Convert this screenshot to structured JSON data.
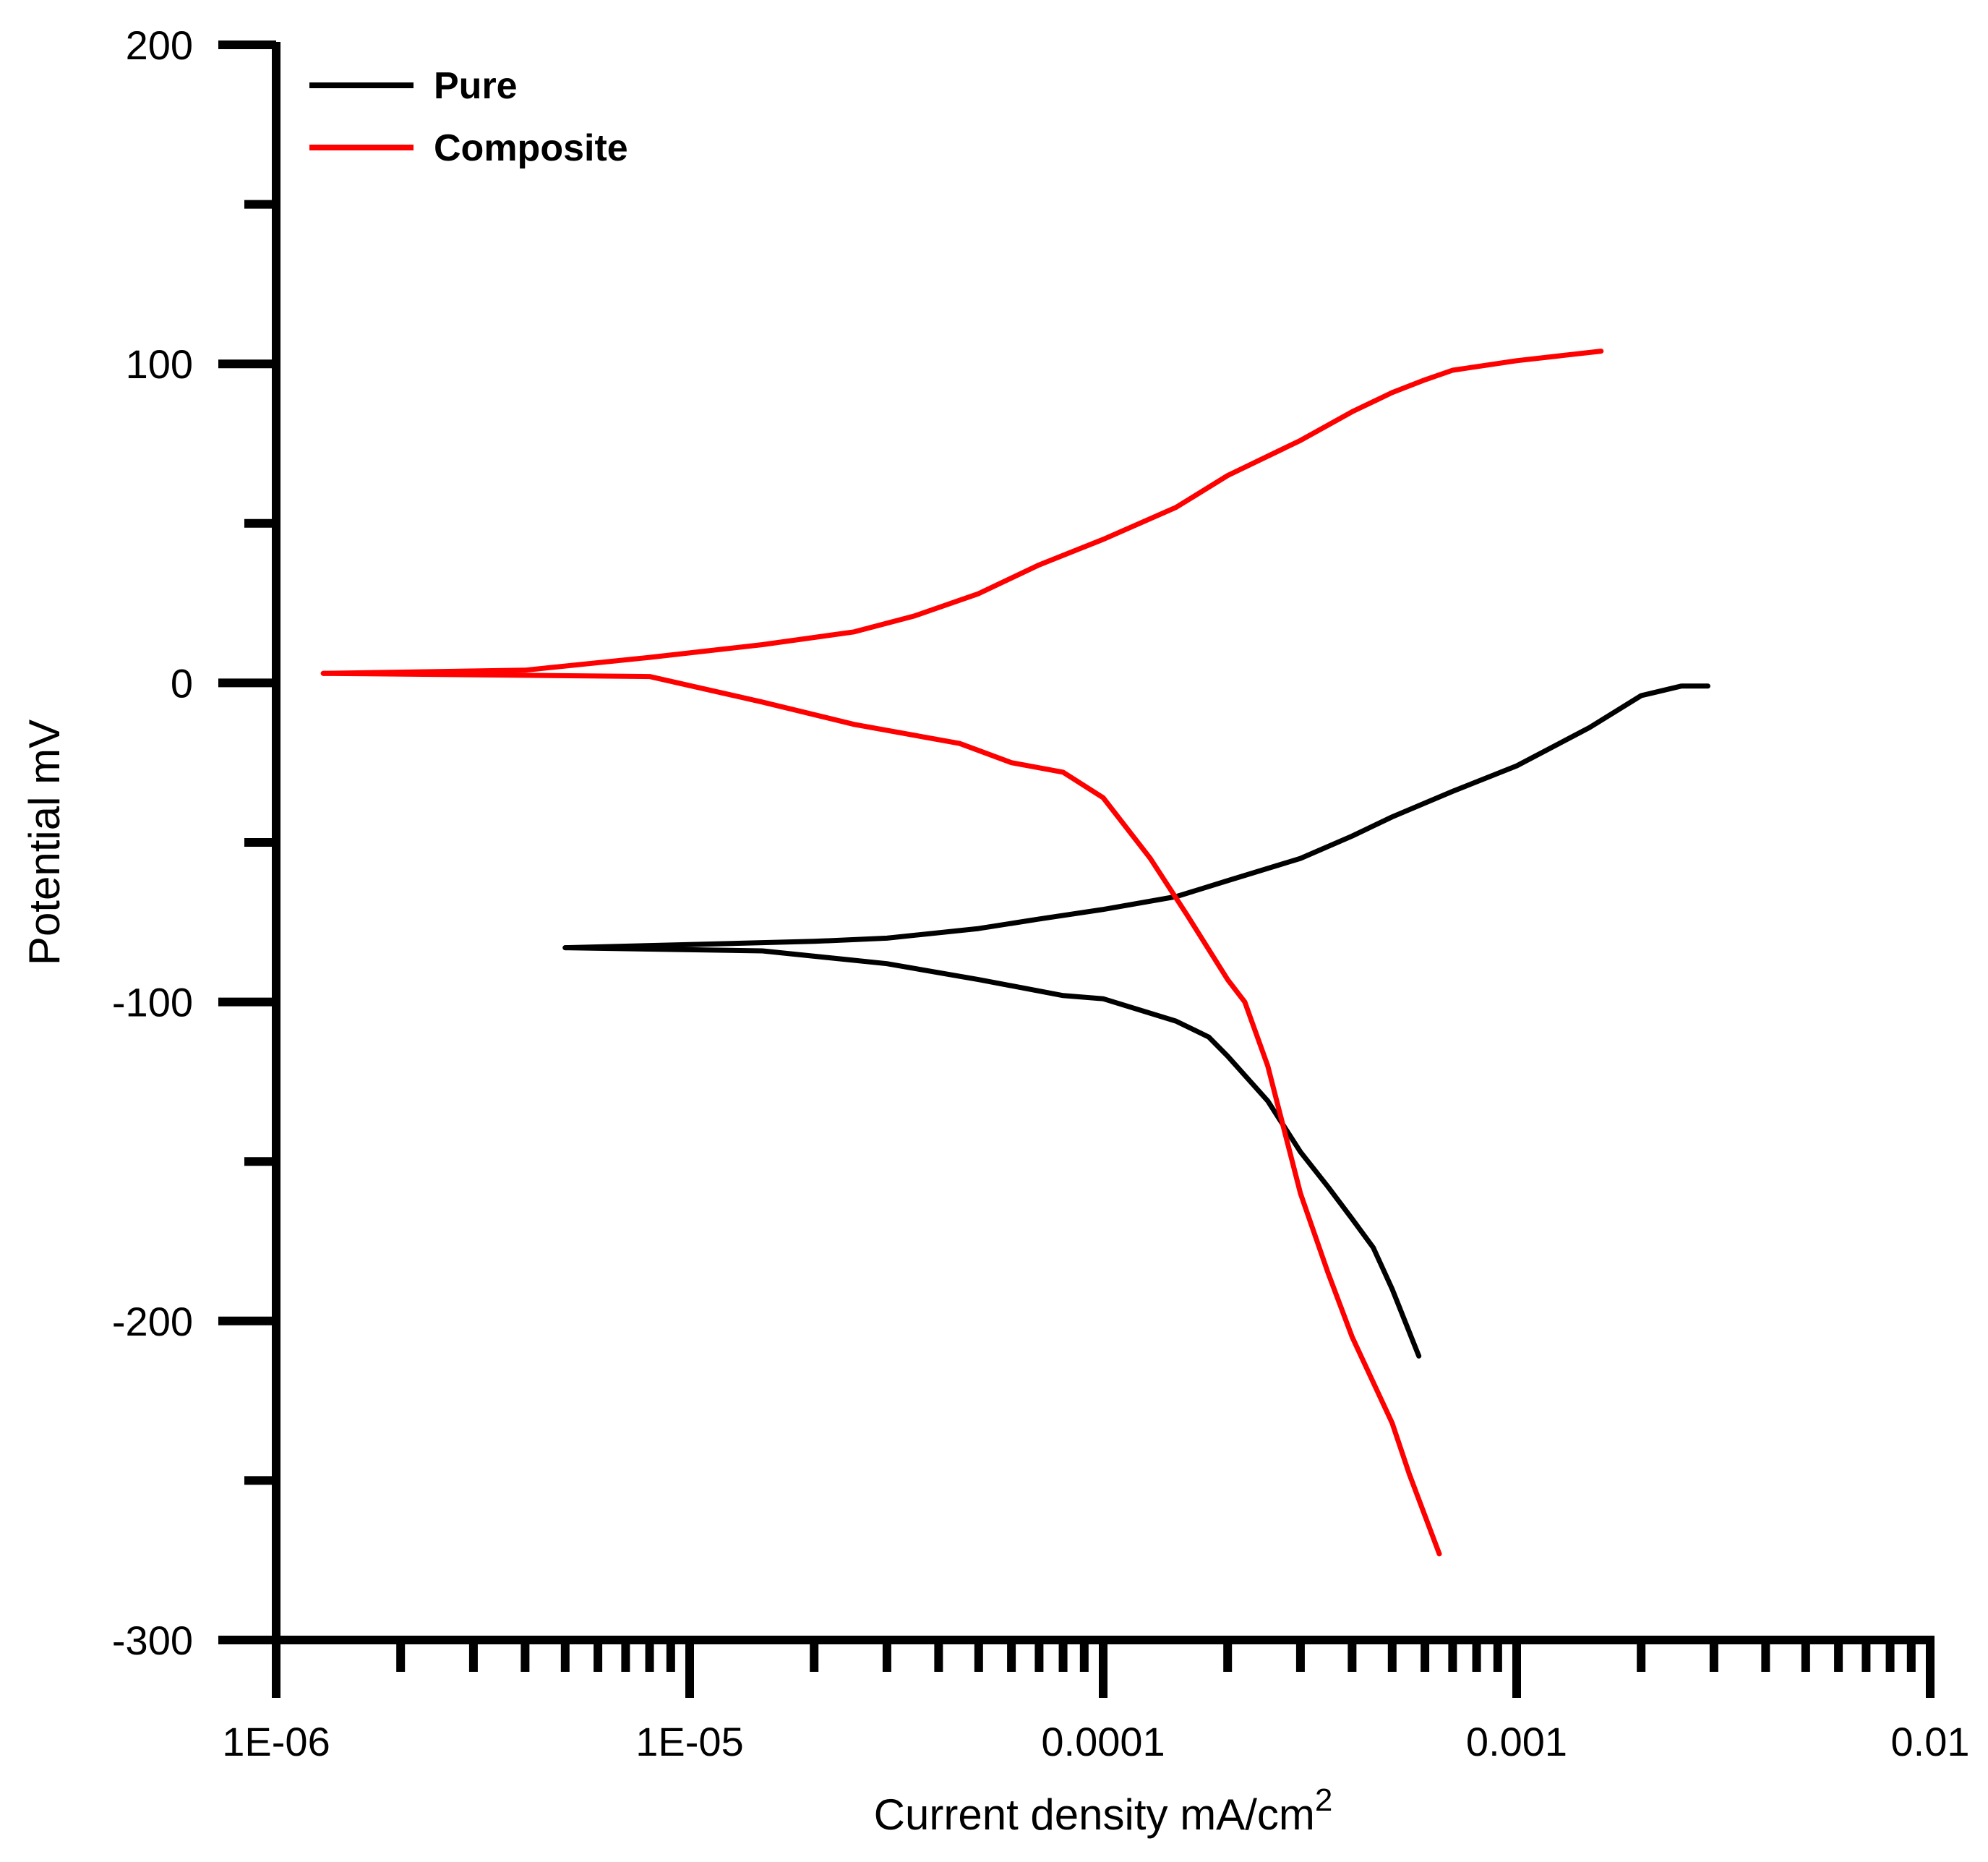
{
  "chart_data": {
    "type": "line",
    "xlabel": "Current density mA/cm",
    "xlabel_superscript": "2",
    "ylabel": "Potential mV",
    "x_scale": "log",
    "xlim": [
      1e-06,
      0.01
    ],
    "ylim": [
      -300,
      200
    ],
    "x_ticks": [
      1e-06,
      1e-05,
      0.0001,
      0.001,
      0.01
    ],
    "x_tick_labels": [
      "1E-06",
      "1E-05",
      "0.0001",
      "0.001",
      "0.01"
    ],
    "y_ticks": [
      -300,
      -200,
      -100,
      0,
      100,
      200
    ],
    "y_tick_labels": [
      "-300",
      "-200",
      "-100",
      "0",
      "100",
      "200"
    ],
    "y_minor_ticks": [
      -250,
      -150,
      -50,
      50,
      150
    ],
    "grid": false,
    "legend_position": "top-left",
    "series": [
      {
        "name": "Pure",
        "color": "#000000",
        "branches": [
          {
            "x": [
              5e-06,
              1e-05,
              2e-05,
              3e-05,
              5e-05,
              7e-05,
              0.0001,
              0.00015,
              0.0002,
              0.0003,
              0.0004,
              0.0005,
              0.0007,
              0.001,
              0.0015,
              0.002,
              0.0025,
              0.0029
            ],
            "y": [
              -83,
              -82,
              -81,
              -80,
              -77,
              -74,
              -71,
              -67,
              -62,
              -55,
              -48,
              -42,
              -34,
              -26,
              -14,
              -4,
              -1,
              -1
            ]
          },
          {
            "x": [
              5e-06,
              1.5e-05,
              3e-05,
              5e-05,
              8e-05,
              0.0001,
              0.00015,
              0.00018,
              0.0002,
              0.00025,
              0.0003,
              0.00035,
              0.0004,
              0.00045,
              0.0005,
              0.00058
            ],
            "y": [
              -83,
              -84,
              -88,
              -93,
              -98,
              -99,
              -106,
              -111,
              -117,
              -131,
              -147,
              -158,
              -168,
              -177,
              -190,
              -211
            ]
          }
        ]
      },
      {
        "name": "Composite",
        "color": "#ff0000",
        "branches": [
          {
            "x": [
              1.3e-06,
              4e-06,
              8e-06,
              1.5e-05,
              2.5e-05,
              3.5e-05,
              5e-05,
              7e-05,
              0.0001,
              0.00015,
              0.0002,
              0.0003,
              0.0004,
              0.0005,
              0.0006,
              0.0007,
              0.001,
              0.0016
            ],
            "y": [
              3,
              4,
              8,
              12,
              16,
              21,
              28,
              37,
              45,
              55,
              65,
              76,
              85,
              91,
              95,
              98,
              101,
              104
            ]
          },
          {
            "x": [
              1.3e-06,
              8e-06,
              1.5e-05,
              2.5e-05,
              4.5e-05,
              6e-05,
              8e-05,
              0.0001,
              0.00013,
              0.00016,
              0.0002,
              0.00022,
              0.00025,
              0.0003,
              0.00035,
              0.0004,
              0.0005,
              0.00055,
              0.00065
            ],
            "y": [
              3,
              2,
              -6,
              -13,
              -19,
              -25,
              -28,
              -36,
              -55,
              -73,
              -93,
              -100,
              -120,
              -160,
              -185,
              -205,
              -232,
              -248,
              -273
            ]
          }
        ]
      }
    ]
  }
}
